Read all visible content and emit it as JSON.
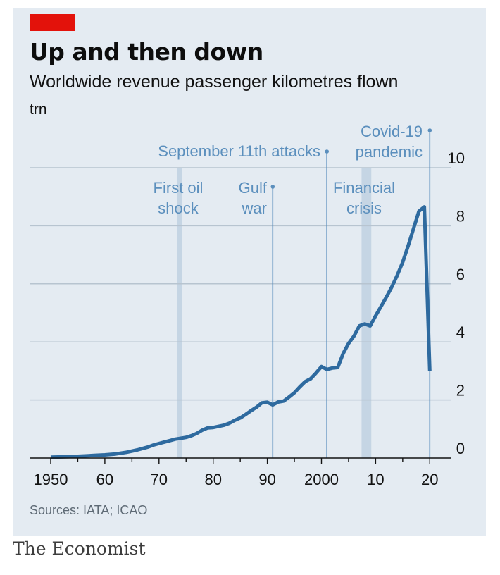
{
  "header": {
    "title": "Up and then down",
    "subtitle": "Worldwide revenue passenger kilometres flown",
    "unit": "trn"
  },
  "footer": {
    "source": "Sources: IATA; ICAO",
    "brand": "The Economist"
  },
  "colors": {
    "accent": "#e3120b",
    "line": "#2e6a9f",
    "annotation": "#5b8fbd",
    "band": "#c5d5e4",
    "grid": "#b7c4d0",
    "background": "#e4ebf2"
  },
  "chart_data": {
    "type": "line",
    "xlim": [
      1946,
      2025
    ],
    "ylim": [
      0,
      10
    ],
    "y_ticks": [
      0,
      2,
      4,
      6,
      8,
      10
    ],
    "x_ticks": [
      {
        "value": 1950,
        "label": "1950"
      },
      {
        "value": 1960,
        "label": "60"
      },
      {
        "value": 1970,
        "label": "70"
      },
      {
        "value": 1980,
        "label": "80"
      },
      {
        "value": 1990,
        "label": "90"
      },
      {
        "value": 2000,
        "label": "2000"
      },
      {
        "value": 2010,
        "label": "10"
      },
      {
        "value": 2020,
        "label": "20"
      }
    ],
    "grid": true,
    "series": [
      {
        "x": [
          1950,
          1952,
          1954,
          1956,
          1958,
          1960,
          1962,
          1964,
          1966,
          1968,
          1969,
          1970,
          1971,
          1972,
          1973,
          1974,
          1975,
          1976,
          1977,
          1978,
          1979,
          1980,
          1981,
          1982,
          1983,
          1984,
          1985,
          1986,
          1987,
          1988,
          1989,
          1990,
          1991,
          1992,
          1993,
          1994,
          1995,
          1996,
          1997,
          1998,
          1999,
          2000,
          2001,
          2002,
          2003,
          2004,
          2005,
          2006,
          2007,
          2008,
          2009,
          2010,
          2011,
          2012,
          2013,
          2014,
          2015,
          2016,
          2017,
          2018,
          2019,
          2020
        ],
        "y": [
          0.03,
          0.04,
          0.05,
          0.07,
          0.09,
          0.11,
          0.14,
          0.2,
          0.28,
          0.38,
          0.45,
          0.5,
          0.55,
          0.6,
          0.65,
          0.68,
          0.71,
          0.77,
          0.85,
          0.96,
          1.04,
          1.05,
          1.09,
          1.13,
          1.2,
          1.3,
          1.38,
          1.5,
          1.63,
          1.75,
          1.9,
          1.92,
          1.83,
          1.93,
          1.96,
          2.1,
          2.25,
          2.45,
          2.63,
          2.73,
          2.93,
          3.15,
          3.05,
          3.1,
          3.12,
          3.6,
          3.95,
          4.2,
          4.55,
          4.62,
          4.55,
          4.9,
          5.22,
          5.55,
          5.9,
          6.3,
          6.75,
          7.3,
          7.9,
          8.5,
          8.65,
          3.0
        ]
      }
    ],
    "events": [
      {
        "label_lines": [
          "First oil",
          "shock"
        ],
        "band": [
          1973.3,
          1974.3
        ]
      },
      {
        "label_lines": [
          "Gulf",
          "war"
        ],
        "line": 1991
      },
      {
        "label_lines": [
          "September 11th attacks"
        ],
        "line": 2001
      },
      {
        "label_lines": [
          "Financial",
          "crisis"
        ],
        "band": [
          2007.4,
          2009.2
        ]
      },
      {
        "label_lines": [
          "Covid-19",
          "pandemic"
        ],
        "line": 2020
      }
    ]
  }
}
